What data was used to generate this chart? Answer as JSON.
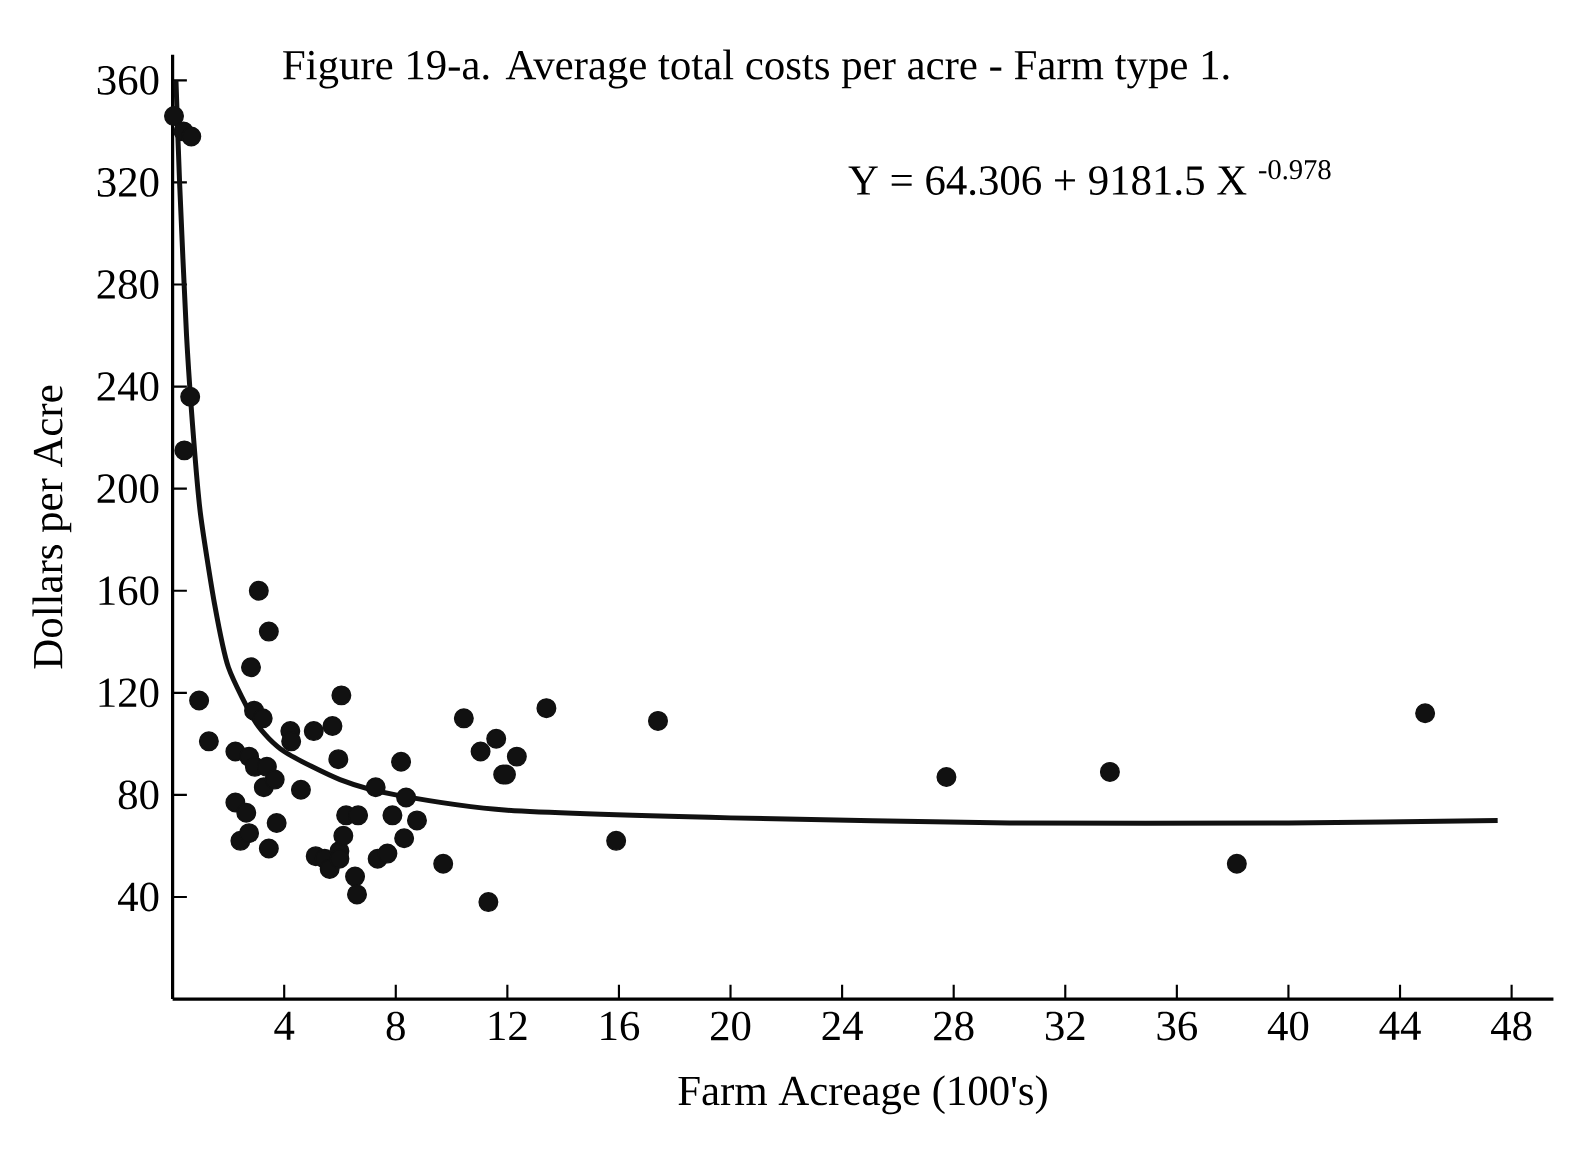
{
  "chart_data": {
    "type": "scatter",
    "title": "Figure 19-a.  Average total costs per acre - Farm type 1.",
    "xlabel": "Farm Acreage (100's)",
    "ylabel": "Dollars per Acre",
    "annotations": [
      "Y = 64.306 + 9181.5 X $^{-0.978}$"
    ],
    "xlim": [
      0,
      49.5
    ],
    "ylim": [
      0,
      370
    ],
    "xticks": [
      4,
      8,
      12,
      16,
      20,
      24,
      28,
      32,
      36,
      40,
      44,
      48
    ],
    "yticks": [
      40,
      80,
      120,
      160,
      200,
      240,
      280,
      320,
      360
    ],
    "grid": false,
    "series": [
      {
        "marker": "circle",
        "color": "#111111",
        "x": [
          0.05,
          0.39,
          0.67,
          0.63,
          0.42,
          0.95,
          1.3,
          2.25,
          2.25,
          2.43,
          2.64,
          2.74,
          2.74,
          2.81,
          2.92,
          2.95,
          3.09,
          3.23,
          3.27,
          3.38,
          3.45,
          3.45,
          3.66,
          3.73,
          4.22,
          4.25,
          4.6,
          5.06,
          5.13,
          5.45,
          5.63,
          5.73,
          5.94,
          5.98,
          5.98,
          6.05,
          6.12,
          6.22,
          6.54,
          6.61,
          6.65,
          7.28,
          7.35,
          7.7,
          7.88,
          8.19,
          8.3,
          8.37,
          8.76,
          9.7,
          10.44,
          11.04,
          11.32,
          11.6,
          11.85,
          11.95,
          12.34,
          13.4,
          15.9,
          17.4,
          27.74,
          33.6,
          38.15,
          44.9
        ],
        "values": [
          346,
          340,
          338,
          236,
          215,
          117,
          101,
          97,
          77,
          62,
          73,
          95,
          65,
          130,
          113,
          91,
          160,
          110,
          83,
          91,
          144,
          59,
          86,
          69,
          105,
          101,
          82,
          105,
          56,
          55,
          51,
          107,
          94,
          58,
          55,
          119,
          64,
          72,
          48,
          41,
          72,
          83,
          55,
          57,
          72,
          93,
          63,
          79,
          70,
          53,
          110,
          97,
          38,
          102,
          88,
          88,
          95,
          114,
          62,
          109,
          87,
          89,
          53,
          112
        ]
      },
      {
        "type": "line",
        "marker": "none",
        "line_style": "solid",
        "color": "#111111",
        "x": [
          0.12,
          0.25,
          0.5,
          0.75,
          1,
          1.5,
          2,
          3,
          4,
          6,
          8,
          12,
          20,
          30,
          40,
          47.5
        ],
        "values": [
          360,
          320,
          260,
          220,
          190,
          155,
          130,
          108,
          97,
          86,
          80,
          74,
          71,
          69,
          69,
          70
        ]
      }
    ]
  }
}
